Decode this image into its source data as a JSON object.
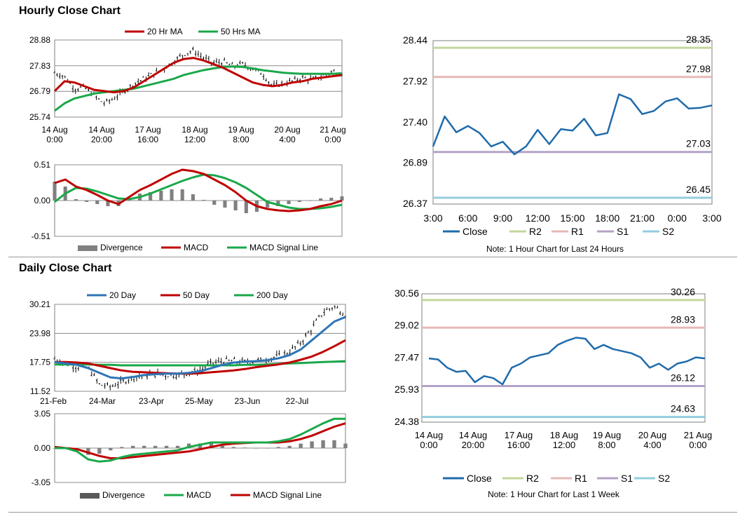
{
  "sections": {
    "hourly_title": "Hourly Close Chart",
    "daily_title": "Daily Close Chart"
  },
  "colors": {
    "red": "#c00000",
    "green": "#1aa84a",
    "blue": "#2e75b6",
    "divergence": "#808080",
    "close": "#1f6bab",
    "r2": "#c3d69b",
    "r1": "#e6b9b8",
    "s1": "#b3a2c7",
    "s2": "#93cddd"
  },
  "chart_data": [
    {
      "id": "hourly_price",
      "type": "line",
      "title": "Hourly Close Chart",
      "legend": [
        "20 Hr MA",
        "50 Hrs MA"
      ],
      "yticks": [
        "28.88",
        "27.83",
        "26.79",
        "25.74"
      ],
      "ylim": [
        25.74,
        28.88
      ],
      "xticks": [
        [
          "14 Aug",
          "0:00"
        ],
        [
          "14 Aug",
          "20:00"
        ],
        [
          "17 Aug",
          "16:00"
        ],
        [
          "18 Aug",
          "12:00"
        ],
        [
          "19 Aug",
          "8:00"
        ],
        [
          "20 Aug",
          "4:00"
        ],
        [
          "21 Aug",
          "0:00"
        ]
      ],
      "series": [
        {
          "name": "Close",
          "values": [
            27.55,
            27.4,
            26.9,
            26.95,
            26.6,
            26.3,
            26.5,
            26.8,
            27.1,
            27.3,
            27.5,
            27.7,
            28.0,
            28.3,
            28.45,
            28.15,
            27.95,
            28.0,
            27.8,
            27.9,
            27.7,
            27.5,
            27.0,
            27.1,
            27.2,
            27.35,
            27.25,
            27.4,
            27.6,
            27.55
          ]
        },
        {
          "name": "20 Hr MA",
          "values": [
            26.8,
            27.2,
            27.15,
            27.0,
            26.85,
            26.8,
            26.75,
            26.8,
            26.95,
            27.2,
            27.45,
            27.7,
            27.95,
            28.1,
            28.15,
            28.05,
            27.9,
            27.75,
            27.55,
            27.35,
            27.15,
            27.05,
            27.0,
            27.05,
            27.15,
            27.2,
            27.3,
            27.35,
            27.4,
            27.45
          ]
        },
        {
          "name": "50 Hrs MA",
          "values": [
            26.0,
            26.3,
            26.5,
            26.6,
            26.7,
            26.75,
            26.8,
            26.85,
            26.9,
            27.0,
            27.1,
            27.2,
            27.3,
            27.45,
            27.55,
            27.65,
            27.72,
            27.78,
            27.8,
            27.78,
            27.72,
            27.65,
            27.6,
            27.55,
            27.52,
            27.5,
            27.5,
            27.5,
            27.5,
            27.52
          ]
        }
      ]
    },
    {
      "id": "hourly_macd",
      "type": "line",
      "legend": [
        "Divergence",
        "MACD",
        "MACD Signal Line"
      ],
      "yticks": [
        "0.51",
        "0.00",
        "-0.51"
      ],
      "ylim": [
        -0.51,
        0.51
      ],
      "series": [
        {
          "name": "MACD",
          "values": [
            0.25,
            0.3,
            0.2,
            0.15,
            0.08,
            0.0,
            -0.05,
            0.05,
            0.15,
            0.22,
            0.3,
            0.38,
            0.44,
            0.42,
            0.38,
            0.3,
            0.22,
            0.12,
            0.0,
            -0.08,
            -0.12,
            -0.14,
            -0.15,
            -0.14,
            -0.12,
            -0.08,
            -0.05,
            0.0
          ]
        },
        {
          "name": "MACD Signal Line",
          "values": [
            -0.02,
            0.1,
            0.18,
            0.17,
            0.13,
            0.08,
            0.03,
            0.02,
            0.05,
            0.1,
            0.16,
            0.22,
            0.28,
            0.33,
            0.37,
            0.36,
            0.32,
            0.26,
            0.18,
            0.08,
            -0.02,
            -0.06,
            -0.1,
            -0.12,
            -0.12,
            -0.11,
            -0.09,
            -0.06
          ]
        },
        {
          "name": "Divergence",
          "values": [
            0.27,
            0.2,
            0.02,
            -0.02,
            -0.05,
            -0.08,
            -0.08,
            0.03,
            0.1,
            0.12,
            0.14,
            0.16,
            0.16,
            0.09,
            0.01,
            -0.06,
            -0.1,
            -0.14,
            -0.18,
            -0.16,
            -0.1,
            -0.08,
            -0.05,
            -0.02,
            0.0,
            0.03,
            0.04,
            0.06
          ]
        }
      ]
    },
    {
      "id": "hourly_close",
      "type": "line",
      "note": "Note: 1 Hour Chart for Last 24 Hours",
      "legend": [
        "Close",
        "R2",
        "R1",
        "S1",
        "S2"
      ],
      "yticks": [
        "28.44",
        "27.92",
        "27.40",
        "26.89",
        "26.37"
      ],
      "ylim": [
        26.37,
        28.44
      ],
      "xticks": [
        "3:00",
        "6:00",
        "9:00",
        "12:00",
        "15:00",
        "18:00",
        "21:00",
        "0:00",
        "3:00"
      ],
      "levels": {
        "R2": "28.35",
        "R1": "27.98",
        "S1": "27.03",
        "S2": "26.45"
      },
      "values": [
        27.1,
        27.48,
        27.28,
        27.36,
        27.27,
        27.1,
        27.16,
        27.0,
        27.1,
        27.31,
        27.13,
        27.32,
        27.3,
        27.45,
        27.24,
        27.27,
        27.76,
        27.7,
        27.51,
        27.55,
        27.67,
        27.71,
        27.58,
        27.59,
        27.62
      ]
    },
    {
      "id": "daily_price",
      "type": "line",
      "title": "Daily Close Chart",
      "legend": [
        "20 Day",
        "50 Day",
        "200 Day"
      ],
      "yticks": [
        "30.21",
        "23.98",
        "17.75",
        "11.52"
      ],
      "ylim": [
        11.52,
        30.21
      ],
      "xticks": [
        "21-Feb",
        "24-Mar",
        "23-Apr",
        "25-May",
        "23-Jun",
        "22-Jul"
      ],
      "series": [
        {
          "name": "Close",
          "values": [
            18.5,
            17.5,
            16.8,
            16.5,
            13.0,
            12.5,
            13.5,
            14.5,
            15.0,
            15.3,
            15.0,
            15.0,
            15.5,
            16.0,
            17.5,
            18.0,
            18.0,
            17.8,
            18.0,
            18.5,
            19.0,
            20.0,
            22.0,
            25.0,
            28.5,
            29.8,
            28.0
          ]
        },
        {
          "name": "20 Day",
          "values": [
            17.8,
            17.5,
            17.2,
            16.5,
            15.5,
            14.5,
            14.3,
            14.6,
            15.0,
            15.2,
            15.3,
            15.3,
            15.5,
            15.8,
            16.5,
            17.2,
            17.7,
            17.9,
            18.0,
            18.2,
            18.6,
            19.3,
            20.5,
            22.5,
            24.5,
            26.5,
            27.5
          ]
        },
        {
          "name": "50 Day",
          "values": [
            17.8,
            17.8,
            17.7,
            17.5,
            17.0,
            16.5,
            16.0,
            15.7,
            15.6,
            15.5,
            15.4,
            15.3,
            15.3,
            15.4,
            15.6,
            15.8,
            16.0,
            16.3,
            16.7,
            17.0,
            17.3,
            17.7,
            18.3,
            19.0,
            20.0,
            21.2,
            22.5
          ]
        },
        {
          "name": "200 Day",
          "values": [
            17.3,
            17.3,
            17.3,
            17.3,
            17.2,
            17.2,
            17.1,
            17.1,
            17.1,
            17.1,
            17.1,
            17.1,
            17.1,
            17.1,
            17.1,
            17.1,
            17.1,
            17.2,
            17.2,
            17.3,
            17.4,
            17.5,
            17.6,
            17.7,
            17.8,
            17.9,
            18.0
          ]
        }
      ]
    },
    {
      "id": "daily_macd",
      "type": "line",
      "legend": [
        "Divergence",
        "MACD",
        "MACD Signal Line"
      ],
      "yticks": [
        "3.05",
        "0.00",
        "-3.05"
      ],
      "ylim": [
        -3.05,
        3.05
      ],
      "series": [
        {
          "name": "MACD",
          "values": [
            0.0,
            0.0,
            -0.3,
            -1.0,
            -1.2,
            -1.1,
            -0.8,
            -0.6,
            -0.5,
            -0.4,
            -0.3,
            -0.2,
            0.1,
            0.3,
            0.5,
            0.5,
            0.5,
            0.5,
            0.5,
            0.5,
            0.6,
            0.8,
            1.2,
            1.7,
            2.2,
            2.6,
            2.6
          ]
        },
        {
          "name": "MACD Signal Line",
          "values": [
            0.1,
            0.0,
            -0.1,
            -0.4,
            -0.7,
            -0.9,
            -0.9,
            -0.8,
            -0.7,
            -0.6,
            -0.5,
            -0.4,
            -0.3,
            -0.1,
            0.1,
            0.3,
            0.4,
            0.45,
            0.5,
            0.5,
            0.5,
            0.6,
            0.8,
            1.1,
            1.5,
            1.9,
            2.2
          ]
        },
        {
          "name": "Divergence",
          "values": [
            0.0,
            0.0,
            -0.2,
            -0.6,
            -0.5,
            -0.2,
            0.1,
            0.2,
            0.2,
            0.2,
            0.2,
            0.2,
            0.4,
            0.4,
            0.4,
            0.2,
            0.1,
            0.05,
            0.0,
            0.0,
            0.1,
            0.2,
            0.4,
            0.6,
            0.7,
            0.7,
            0.4
          ]
        }
      ]
    },
    {
      "id": "daily_close",
      "type": "line",
      "note": "Note: 1 Hour Chart for Last 1 Week",
      "legend": [
        "Close",
        "R2",
        "R1",
        "S1",
        "S2"
      ],
      "yticks": [
        "30.56",
        "29.02",
        "27.47",
        "25.93",
        "24.38"
      ],
      "ylim": [
        24.38,
        30.56
      ],
      "xticks": [
        [
          "14 Aug",
          "0:00"
        ],
        [
          "14 Aug",
          "20:00"
        ],
        [
          "17 Aug",
          "16:00"
        ],
        [
          "18 Aug",
          "12:00"
        ],
        [
          "19 Aug",
          "8:00"
        ],
        [
          "20 Aug",
          "4:00"
        ],
        [
          "21 Aug",
          "0:00"
        ]
      ],
      "levels": {
        "R2": "30.26",
        "R1": "28.93",
        "S1": "26.12",
        "S2": "24.63"
      },
      "values": [
        27.45,
        27.4,
        27.0,
        26.8,
        26.85,
        26.3,
        26.6,
        26.5,
        26.2,
        27.0,
        27.2,
        27.5,
        27.6,
        27.7,
        28.1,
        28.3,
        28.45,
        28.4,
        27.9,
        28.1,
        27.9,
        27.8,
        27.7,
        27.5,
        27.0,
        27.2,
        26.9,
        27.2,
        27.3,
        27.5,
        27.45
      ]
    }
  ]
}
